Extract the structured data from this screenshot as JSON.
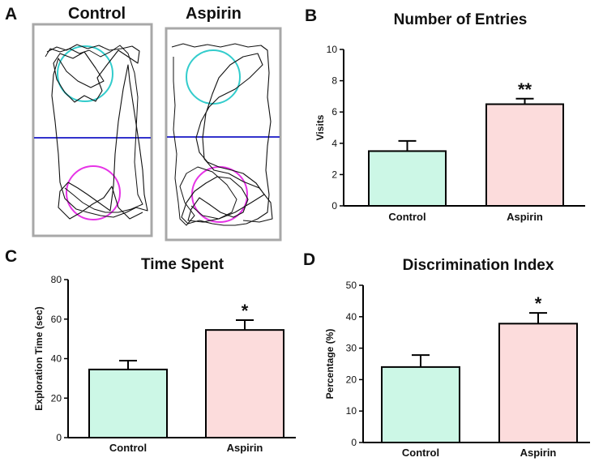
{
  "panels": {
    "a": "A",
    "b": "B",
    "c": "C",
    "d": "D"
  },
  "maze": {
    "control_label": "Control",
    "aspirin_label": "Aspirin",
    "familiar_object_color": "#33cccc",
    "novel_object_color": "#e633e6",
    "divider_color": "#3333cc",
    "frame_color": "#a8a8a8"
  },
  "colors": {
    "control_bar": "#ccf7e6",
    "aspirin_bar": "#fcdcdc",
    "axis": "#000000"
  },
  "chart_data": [
    {
      "id": "B",
      "type": "bar",
      "title": "Number of Entries",
      "xlabel": "",
      "ylabel": "Visits",
      "categories": [
        "Control",
        "Aspirin"
      ],
      "values": [
        3.5,
        6.5
      ],
      "errors": [
        0.65,
        0.35
      ],
      "significance": [
        "",
        "**"
      ],
      "ylim": [
        0,
        10
      ],
      "yticks": [
        0,
        2,
        4,
        6,
        8,
        10
      ]
    },
    {
      "id": "C",
      "type": "bar",
      "title": "Time Spent",
      "xlabel": "",
      "ylabel": "Exploration  Time (sec)",
      "categories": [
        "Control",
        "Aspirin"
      ],
      "values": [
        34.5,
        54.5
      ],
      "errors": [
        4.5,
        5.0
      ],
      "significance": [
        "",
        "*"
      ],
      "ylim": [
        0,
        80
      ],
      "yticks": [
        0,
        20,
        40,
        60,
        80
      ]
    },
    {
      "id": "D",
      "type": "bar",
      "title": "Discrimination Index",
      "xlabel": "",
      "ylabel": "Percentage (%)",
      "categories": [
        "Control",
        "Aspirin"
      ],
      "values": [
        24,
        37.8
      ],
      "errors": [
        3.8,
        3.4
      ],
      "significance": [
        "",
        "*"
      ],
      "ylim": [
        0,
        50
      ],
      "yticks": [
        0,
        10,
        20,
        30,
        40,
        50
      ]
    }
  ]
}
